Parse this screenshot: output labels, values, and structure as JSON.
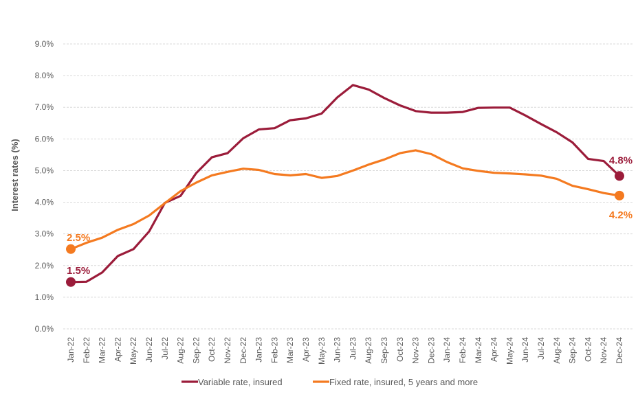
{
  "chart_data": {
    "type": "line",
    "ylabel": "Interest rates (%)",
    "xlabel": "",
    "title": "",
    "ylim": [
      0,
      9
    ],
    "y_ticks": [
      "0.0%",
      "1.0%",
      "2.0%",
      "3.0%",
      "4.0%",
      "5.0%",
      "6.0%",
      "7.0%",
      "8.0%",
      "9.0%"
    ],
    "grid": "horizontal dashed",
    "legend_position": "bottom",
    "categories": [
      "Jan-22",
      "Feb-22",
      "Mar-22",
      "Apr-22",
      "May-22",
      "Jun-22",
      "Jul-22",
      "Aug-22",
      "Sep-22",
      "Oct-22",
      "Nov-22",
      "Dec-22",
      "Jan-23",
      "Feb-23",
      "Mar-23",
      "Apr-23",
      "May-23",
      "Jun-23",
      "Jul-23",
      "Aug-23",
      "Sep-23",
      "Oct-23",
      "Nov-23",
      "Dec-23",
      "Jan-24",
      "Feb-24",
      "Mar-24",
      "Apr-24",
      "May-24",
      "Jun-24",
      "Jul-24",
      "Aug-24",
      "Sep-24",
      "Oct-24",
      "Nov-24",
      "Dec-24"
    ],
    "series": [
      {
        "name": "Variable rate, insured",
        "color": "#9b1c3a",
        "values": [
          1.48,
          1.49,
          1.78,
          2.3,
          2.52,
          3.08,
          3.98,
          4.2,
          4.92,
          5.42,
          5.55,
          6.02,
          6.3,
          6.34,
          6.59,
          6.65,
          6.8,
          7.31,
          7.7,
          7.56,
          7.29,
          7.06,
          6.88,
          6.83,
          6.83,
          6.85,
          6.98,
          6.99,
          6.99,
          6.74,
          6.47,
          6.21,
          5.89,
          5.37,
          5.3,
          4.83
        ],
        "start_label": "1.5%",
        "end_label": "4.8%"
      },
      {
        "name": "Fixed rate, insured, 5 years and more",
        "color": "#f47a20",
        "values": [
          2.52,
          2.72,
          2.88,
          3.13,
          3.31,
          3.58,
          3.97,
          4.35,
          4.62,
          4.85,
          4.96,
          5.06,
          5.02,
          4.89,
          4.85,
          4.89,
          4.77,
          4.83,
          5.0,
          5.19,
          5.35,
          5.55,
          5.64,
          5.52,
          5.27,
          5.07,
          4.99,
          4.93,
          4.91,
          4.88,
          4.84,
          4.74,
          4.52,
          4.41,
          4.29,
          4.21
        ],
        "start_label": "2.5%",
        "end_label": "4.2%"
      }
    ]
  }
}
